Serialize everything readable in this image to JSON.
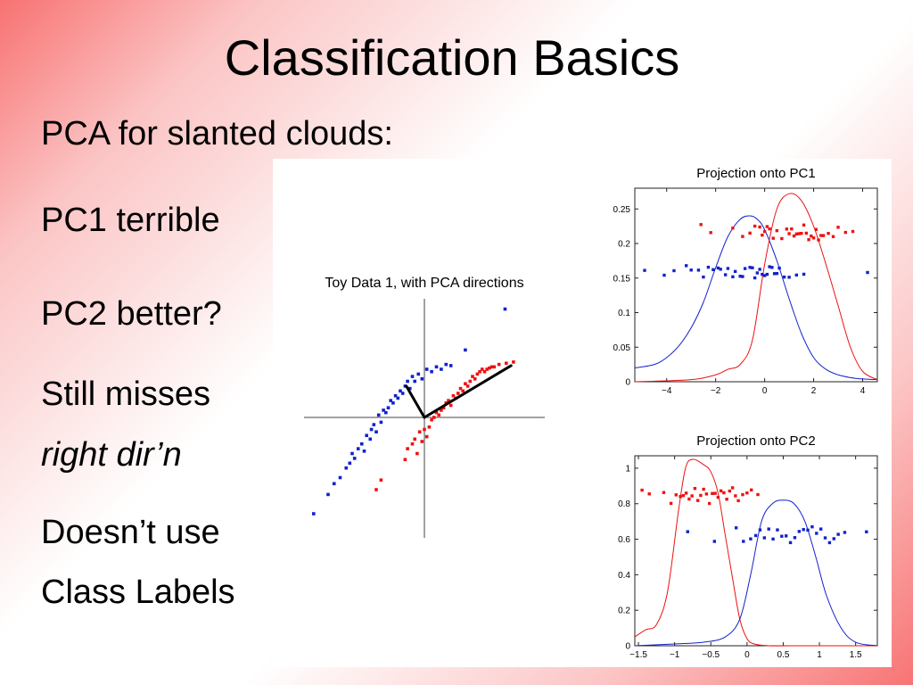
{
  "slide": {
    "title": "Classification Basics",
    "bullets": {
      "intro": "PCA for slanted clouds:",
      "pc1": "PC1 terrible",
      "pc2": "PC2 better?",
      "misses_line1": "Still misses",
      "misses_line2": "right dir’n",
      "labels_line1": "Doesn’t use",
      "labels_line2": "Class Labels"
    }
  },
  "colors": {
    "class_red": "#ee1111",
    "class_blue": "#1122cc",
    "pca_direction": "#000000"
  },
  "chart_data": [
    {
      "id": "toy-data",
      "type": "scatter",
      "title": "Toy Data 1, with PCA directions",
      "xlabel": "",
      "ylabel": "",
      "xlim": [
        -1.0,
        1.0
      ],
      "ylim": [
        -1.0,
        1.0
      ],
      "axes_style": "crosshair through origin, no ticks",
      "grid": false,
      "series": [
        {
          "color": "#1122cc",
          "points": [
            [
              -0.92,
              -0.8
            ],
            [
              -0.75,
              -0.55
            ],
            [
              -0.8,
              -0.64
            ],
            [
              -0.7,
              -0.5
            ],
            [
              -0.65,
              -0.42
            ],
            [
              -0.62,
              -0.38
            ],
            [
              -0.6,
              -0.3
            ],
            [
              -0.58,
              -0.34
            ],
            [
              -0.55,
              -0.26
            ],
            [
              -0.52,
              -0.22
            ],
            [
              -0.5,
              -0.28
            ],
            [
              -0.48,
              -0.15
            ],
            [
              -0.45,
              -0.18
            ],
            [
              -0.44,
              -0.1
            ],
            [
              -0.42,
              -0.06
            ],
            [
              -0.4,
              -0.12
            ],
            [
              -0.38,
              0.02
            ],
            [
              -0.36,
              -0.04
            ],
            [
              -0.34,
              0.06
            ],
            [
              -0.32,
              0.04
            ],
            [
              -0.3,
              0.08
            ],
            [
              -0.28,
              0.14
            ],
            [
              -0.26,
              0.12
            ],
            [
              -0.24,
              0.18
            ],
            [
              -0.22,
              0.16
            ],
            [
              -0.2,
              0.22
            ],
            [
              -0.18,
              0.2
            ],
            [
              -0.16,
              0.26
            ],
            [
              -0.14,
              0.3
            ],
            [
              -0.12,
              0.24
            ],
            [
              -0.1,
              0.34
            ],
            [
              -0.08,
              0.3
            ],
            [
              -0.05,
              0.36
            ],
            [
              -0.02,
              0.32
            ],
            [
              0.02,
              0.4
            ],
            [
              0.06,
              0.38
            ],
            [
              0.1,
              0.42
            ],
            [
              0.14,
              0.4
            ],
            [
              0.18,
              0.44
            ],
            [
              0.22,
              0.43
            ],
            [
              0.34,
              0.56
            ],
            [
              0.67,
              0.9
            ]
          ]
        },
        {
          "color": "#ee1111",
          "points": [
            [
              -0.4,
              -0.6
            ],
            [
              -0.36,
              -0.52
            ],
            [
              -0.16,
              -0.35
            ],
            [
              -0.14,
              -0.26
            ],
            [
              -0.1,
              -0.22
            ],
            [
              -0.08,
              -0.18
            ],
            [
              -0.06,
              -0.3
            ],
            [
              -0.04,
              -0.12
            ],
            [
              -0.02,
              -0.2
            ],
            [
              0.0,
              -0.1
            ],
            [
              0.02,
              -0.16
            ],
            [
              0.04,
              -0.08
            ],
            [
              0.06,
              -0.02
            ],
            [
              0.08,
              0.0
            ],
            [
              0.1,
              0.04
            ],
            [
              0.12,
              0.02
            ],
            [
              0.14,
              0.06
            ],
            [
              0.16,
              0.08
            ],
            [
              0.18,
              0.12
            ],
            [
              0.2,
              0.14
            ],
            [
              0.22,
              0.1
            ],
            [
              0.24,
              0.18
            ],
            [
              0.26,
              0.16
            ],
            [
              0.28,
              0.2
            ],
            [
              0.3,
              0.24
            ],
            [
              0.32,
              0.22
            ],
            [
              0.34,
              0.28
            ],
            [
              0.36,
              0.26
            ],
            [
              0.38,
              0.3
            ],
            [
              0.4,
              0.34
            ],
            [
              0.42,
              0.32
            ],
            [
              0.44,
              0.36
            ],
            [
              0.46,
              0.38
            ],
            [
              0.48,
              0.4
            ],
            [
              0.5,
              0.38
            ],
            [
              0.52,
              0.4
            ],
            [
              0.54,
              0.41
            ],
            [
              0.56,
              0.42
            ],
            [
              0.58,
              0.42
            ],
            [
              0.62,
              0.44
            ],
            [
              0.68,
              0.45
            ],
            [
              0.74,
              0.46
            ]
          ]
        }
      ],
      "pca_directions": [
        {
          "name": "PC1",
          "from": [
            0,
            0
          ],
          "to": [
            0.72,
            0.43
          ]
        },
        {
          "name": "PC2",
          "from": [
            0,
            0
          ],
          "to": [
            -0.15,
            0.26
          ]
        }
      ]
    },
    {
      "id": "pc1-projection",
      "type": "line",
      "title": "Projection onto PC1",
      "xlabel": "",
      "ylabel": "",
      "xlim": [
        -5.3,
        4.6
      ],
      "ylim": [
        0,
        0.28
      ],
      "x_ticks": [
        -4,
        -2,
        0,
        2,
        4
      ],
      "y_ticks": [
        0,
        0.05,
        0.1,
        0.15,
        0.2,
        0.25
      ],
      "x_tick_labels": [
        "−4",
        "−2",
        "0",
        "2",
        "4"
      ],
      "y_tick_labels": [
        "0",
        "0.05",
        "0.1",
        "0.15",
        "0.2",
        "0.25"
      ],
      "grid": false,
      "series": [
        {
          "color": "#1122cc",
          "kind": "density",
          "x": [
            -5.3,
            -4.5,
            -4.0,
            -3.5,
            -3.0,
            -2.5,
            -2.0,
            -1.5,
            -1.0,
            -0.6,
            -0.3,
            0.0,
            0.5,
            1.0,
            1.5,
            2.0,
            2.5,
            3.0,
            3.5,
            4.0,
            4.6
          ],
          "y": [
            0.02,
            0.025,
            0.035,
            0.052,
            0.078,
            0.115,
            0.165,
            0.21,
            0.235,
            0.24,
            0.235,
            0.22,
            0.175,
            0.12,
            0.07,
            0.035,
            0.018,
            0.01,
            0.006,
            0.004,
            0.003
          ]
        },
        {
          "color": "#ee1111",
          "kind": "density",
          "x": [
            -5.3,
            -3.0,
            -2.0,
            -1.5,
            -1.0,
            -0.5,
            0.0,
            0.5,
            1.0,
            1.5,
            2.0,
            2.5,
            3.0,
            3.5,
            4.0,
            4.6
          ],
          "y": [
            0.0,
            0.003,
            0.01,
            0.018,
            0.025,
            0.06,
            0.17,
            0.25,
            0.272,
            0.262,
            0.225,
            0.17,
            0.11,
            0.05,
            0.015,
            0.003
          ]
        },
        {
          "color": "#1122cc",
          "kind": "jitter",
          "band": [
            0.148,
            0.168
          ],
          "x": [
            -4.9,
            -4.1,
            -3.7,
            -3.2,
            -3.0,
            -2.7,
            -2.5,
            -2.3,
            -2.1,
            -1.9,
            -1.8,
            -1.6,
            -1.5,
            -1.3,
            -1.2,
            -1.0,
            -0.9,
            -0.8,
            -0.6,
            -0.5,
            -0.4,
            -0.3,
            -0.2,
            -0.1,
            0.0,
            0.1,
            0.2,
            0.3,
            0.4,
            0.5,
            0.6,
            0.8,
            1.0,
            1.3,
            1.6,
            4.2
          ]
        },
        {
          "color": "#ee1111",
          "kind": "jitter",
          "band": [
            0.205,
            0.228
          ],
          "x": [
            -2.6,
            -2.2,
            -1.3,
            -0.9,
            -0.6,
            -0.4,
            -0.2,
            -0.1,
            0.0,
            0.1,
            0.2,
            0.35,
            0.5,
            0.7,
            0.9,
            1.0,
            1.1,
            1.2,
            1.3,
            1.4,
            1.5,
            1.6,
            1.7,
            1.8,
            1.9,
            2.0,
            2.1,
            2.2,
            2.3,
            2.4,
            2.6,
            2.8,
            3.0,
            3.3,
            3.6
          ]
        }
      ]
    },
    {
      "id": "pc2-projection",
      "type": "line",
      "title": "Projection onto PC2",
      "xlabel": "",
      "ylabel": "",
      "xlim": [
        -1.55,
        1.8
      ],
      "ylim": [
        0,
        1.07
      ],
      "x_ticks": [
        -1.5,
        -1,
        -0.5,
        0,
        0.5,
        1,
        1.5
      ],
      "y_ticks": [
        0,
        0.2,
        0.4,
        0.6,
        0.8,
        1
      ],
      "x_tick_labels": [
        "−1.5",
        "−1",
        "−0.5",
        "0",
        "0.5",
        "1",
        "1.5"
      ],
      "y_tick_labels": [
        "0",
        "0.2",
        "0.4",
        "0.6",
        "0.8",
        "1"
      ],
      "grid": false,
      "series": [
        {
          "color": "#ee1111",
          "kind": "density",
          "x": [
            -1.55,
            -1.4,
            -1.25,
            -1.1,
            -0.95,
            -0.85,
            -0.75,
            -0.6,
            -0.5,
            -0.4,
            -0.3,
            -0.2,
            -0.1,
            0.0,
            0.1,
            0.3,
            0.6,
            1.0,
            1.8
          ],
          "y": [
            0.05,
            0.09,
            0.12,
            0.3,
            0.75,
            1.0,
            1.05,
            1.02,
            0.98,
            0.86,
            0.62,
            0.38,
            0.15,
            0.04,
            0.01,
            0.0,
            0.0,
            0.0,
            0.0
          ]
        },
        {
          "color": "#1122cc",
          "kind": "density",
          "x": [
            -1.55,
            -1.0,
            -0.6,
            -0.3,
            -0.1,
            0.05,
            0.2,
            0.35,
            0.5,
            0.65,
            0.8,
            0.95,
            1.1,
            1.3,
            1.5,
            1.8
          ],
          "y": [
            0.0,
            0.01,
            0.02,
            0.05,
            0.15,
            0.4,
            0.7,
            0.8,
            0.82,
            0.8,
            0.7,
            0.5,
            0.28,
            0.1,
            0.02,
            0.0
          ]
        },
        {
          "color": "#ee1111",
          "kind": "jitter",
          "band": [
            0.8,
            0.89
          ],
          "x": [
            -1.45,
            -1.35,
            -1.15,
            -1.05,
            -0.98,
            -0.92,
            -0.88,
            -0.84,
            -0.8,
            -0.76,
            -0.72,
            -0.68,
            -0.64,
            -0.6,
            -0.56,
            -0.52,
            -0.48,
            -0.44,
            -0.4,
            -0.36,
            -0.32,
            -0.28,
            -0.24,
            -0.2,
            -0.16,
            -0.12,
            -0.06,
            0.0,
            0.06,
            0.15
          ]
        },
        {
          "color": "#1122cc",
          "kind": "jitter",
          "band": [
            0.58,
            0.67
          ],
          "x": [
            -0.82,
            -0.45,
            -0.15,
            -0.05,
            0.05,
            0.12,
            0.18,
            0.24,
            0.3,
            0.36,
            0.42,
            0.48,
            0.54,
            0.6,
            0.66,
            0.72,
            0.78,
            0.84,
            0.9,
            0.96,
            1.02,
            1.08,
            1.14,
            1.2,
            1.26,
            1.35,
            1.65
          ]
        }
      ]
    }
  ]
}
